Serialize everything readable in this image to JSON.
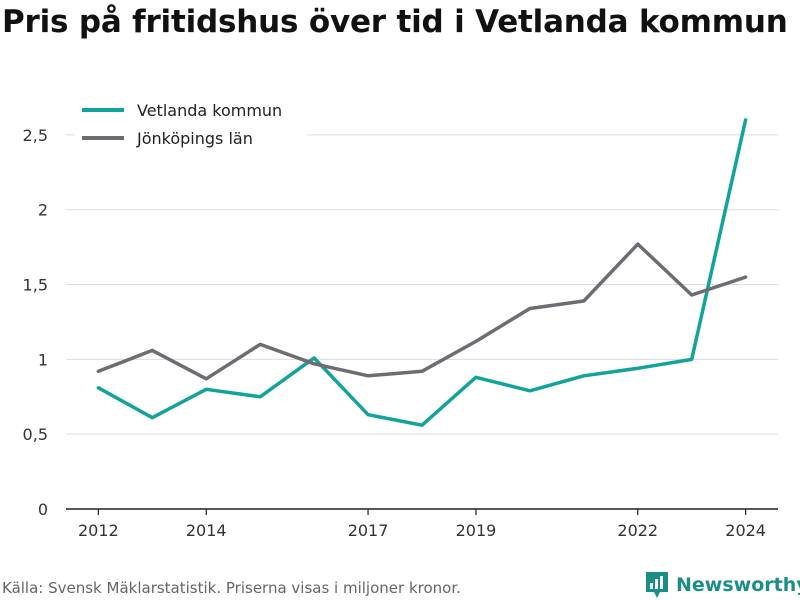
{
  "title": "Pris på fritidshus över tid i Vetlanda kommun",
  "source": "Källa: Svensk Mäklarstatistik. Priserna visas i miljoner kronor.",
  "brand": "Newsworthy",
  "chart_data": {
    "type": "line",
    "title": "Pris på fritidshus över tid i Vetlanda kommun",
    "xlabel": "",
    "ylabel": "",
    "x": [
      2012,
      2013,
      2014,
      2015,
      2016,
      2017,
      2018,
      2019,
      2020,
      2021,
      2022,
      2023,
      2024
    ],
    "x_ticks": [
      2012,
      2014,
      2017,
      2019,
      2022,
      2024
    ],
    "x_tick_labels": [
      "2012",
      "2014",
      "2017",
      "2019",
      "2022",
      "2024"
    ],
    "xlim": [
      2011.4,
      2024.6
    ],
    "ylim": [
      0,
      2.8
    ],
    "y_ticks": [
      0,
      0.5,
      1,
      1.5,
      2,
      2.5
    ],
    "y_tick_labels": [
      "0",
      "0,5",
      "1",
      "1,5",
      "2",
      "2,5"
    ],
    "grid": true,
    "legend_position": "top-left",
    "series": [
      {
        "name": "Vetlanda kommun",
        "color": "#12a39a",
        "values": [
          0.81,
          0.61,
          0.8,
          0.75,
          1.01,
          0.63,
          0.56,
          0.88,
          0.79,
          0.89,
          0.94,
          1.0,
          2.6
        ]
      },
      {
        "name": "Jönköpings län",
        "color": "#6d6c72",
        "values": [
          0.92,
          1.06,
          0.87,
          1.1,
          0.97,
          0.89,
          0.92,
          1.12,
          1.34,
          1.39,
          1.77,
          1.43,
          1.55
        ]
      }
    ]
  }
}
